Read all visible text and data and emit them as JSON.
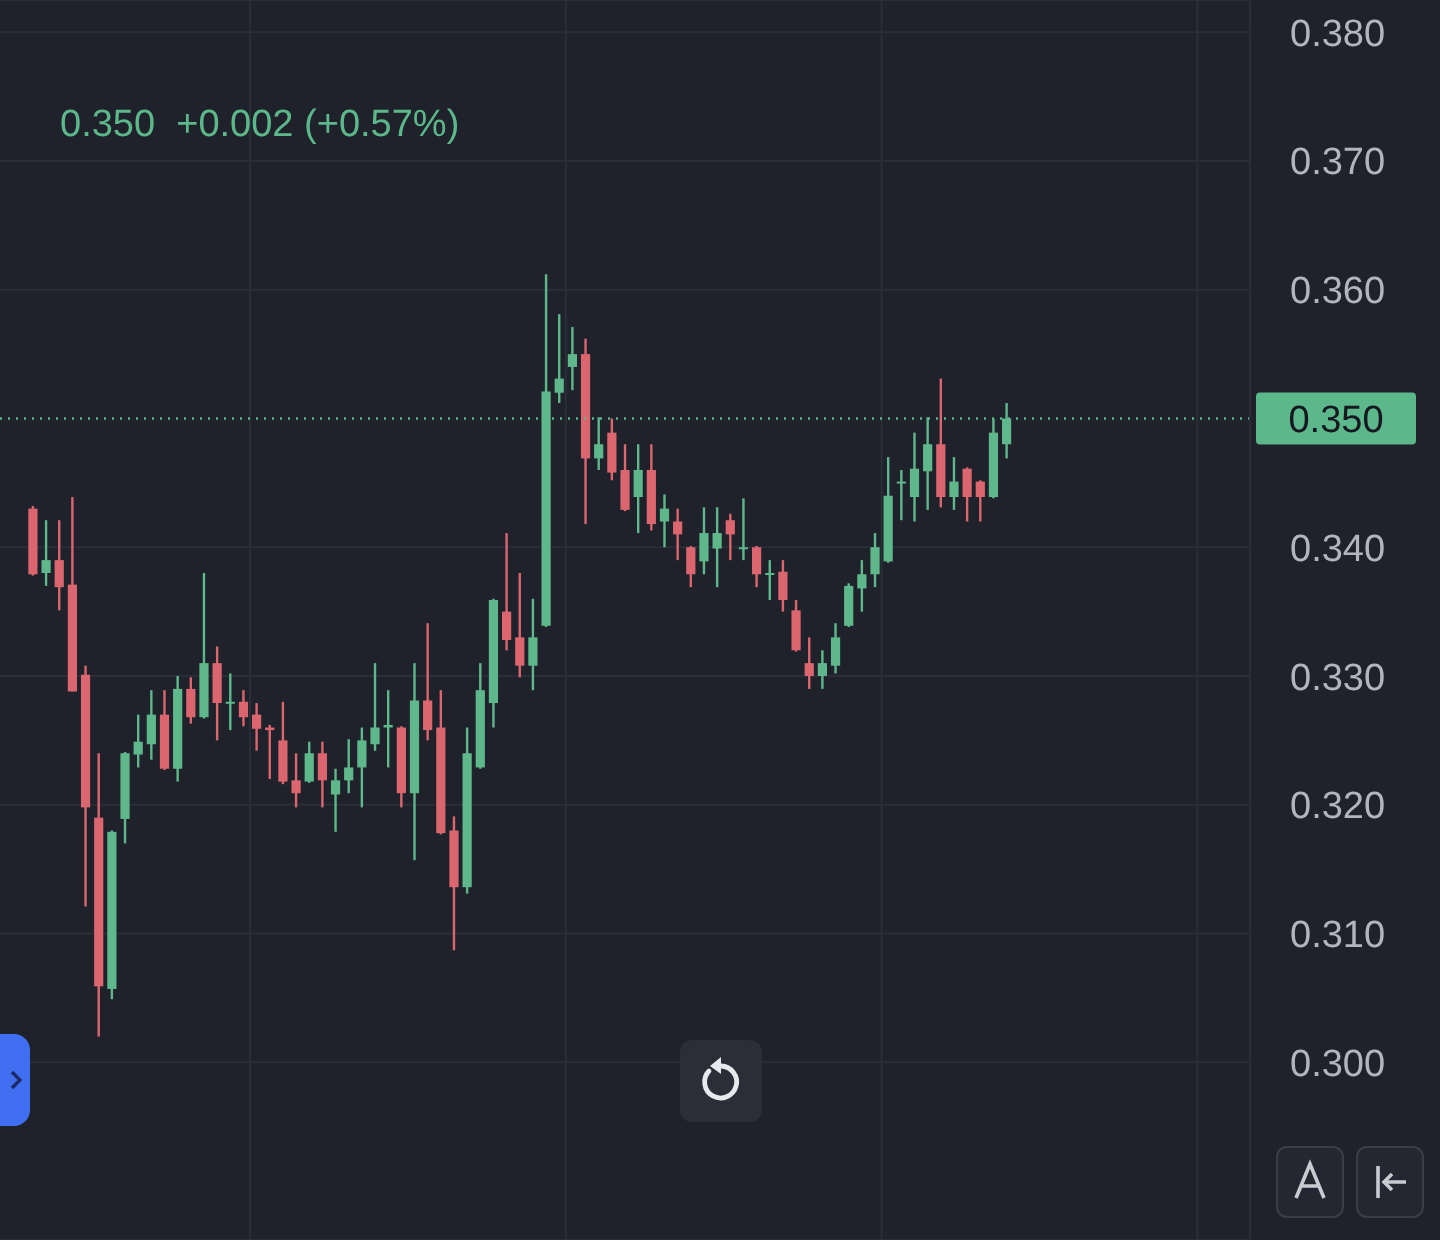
{
  "chart_data": {
    "type": "candlestick",
    "subtitle": "0.350  +0.002 (+0.57%)",
    "categories": [
      null,
      null,
      null,
      null,
      null,
      null,
      null,
      null,
      null,
      null,
      null,
      null,
      null,
      null,
      null,
      null,
      null,
      null,
      null,
      null,
      null,
      null,
      null,
      null,
      null,
      null,
      null,
      null,
      null,
      null,
      null,
      null,
      null,
      null,
      null,
      null,
      null,
      null,
      null,
      null,
      null,
      null,
      null,
      null,
      null,
      null,
      null,
      null,
      null,
      null,
      null,
      null,
      null,
      null,
      null,
      null,
      null,
      null,
      null,
      null,
      null,
      null,
      null,
      null,
      null,
      null,
      null,
      null,
      null,
      null,
      null,
      null,
      null,
      null,
      null,
      null,
      null,
      null,
      null,
      null,
      null,
      null,
      null,
      null,
      null,
      null,
      null,
      null,
      null,
      null,
      null,
      null,
      null,
      null,
      null
    ],
    "ohlc": [
      null,
      null,
      [
        0.343,
        0.3432,
        0.3378,
        0.3379
      ],
      [
        0.338,
        0.3421,
        0.337,
        0.339
      ],
      [
        0.339,
        0.3421,
        0.3351,
        0.3369
      ],
      [
        0.3371,
        0.3439,
        0.3288,
        0.3288
      ],
      [
        0.3301,
        0.3308,
        0.3121,
        0.3198
      ],
      [
        0.319,
        0.324,
        0.302,
        0.3059
      ],
      [
        0.3057,
        0.318,
        0.3049,
        0.3179
      ],
      [
        0.3189,
        0.3241,
        0.317,
        0.324
      ],
      [
        0.3239,
        0.327,
        0.3229,
        0.3249
      ],
      [
        0.3247,
        0.3289,
        0.3235,
        0.327
      ],
      [
        0.327,
        0.3289,
        0.3227,
        0.3228
      ],
      [
        0.3228,
        0.33,
        0.3218,
        0.329
      ],
      [
        0.329,
        0.3299,
        0.3263,
        0.3268
      ],
      [
        0.3268,
        0.338,
        0.3267,
        0.331
      ],
      [
        0.331,
        0.3323,
        0.325,
        0.3279
      ],
      [
        0.3279,
        0.3302,
        0.3258,
        0.328
      ],
      [
        0.328,
        0.3289,
        0.3261,
        0.3268
      ],
      [
        0.327,
        0.3279,
        0.3242,
        0.3259
      ],
      [
        0.326,
        0.3262,
        0.322,
        0.3258
      ],
      [
        0.325,
        0.328,
        0.3216,
        0.3218
      ],
      [
        0.3219,
        0.324,
        0.3198,
        0.3209
      ],
      [
        0.3218,
        0.3249,
        0.3217,
        0.324
      ],
      [
        0.324,
        0.3249,
        0.3198,
        0.3219
      ],
      [
        0.3208,
        0.3228,
        0.3179,
        0.3219
      ],
      [
        0.3219,
        0.3251,
        0.3209,
        0.3229
      ],
      [
        0.3229,
        0.326,
        0.3198,
        0.325
      ],
      [
        0.3247,
        0.331,
        0.3242,
        0.326
      ],
      [
        0.326,
        0.3289,
        0.3229,
        0.3262
      ],
      [
        0.326,
        0.3261,
        0.3198,
        0.3209
      ],
      [
        0.3209,
        0.331,
        0.3157,
        0.3281
      ],
      [
        0.3281,
        0.3341,
        0.325,
        0.3258
      ],
      [
        0.326,
        0.3289,
        0.3177,
        0.3178
      ],
      [
        0.318,
        0.3191,
        0.3087,
        0.3136
      ],
      [
        0.3136,
        0.326,
        0.3131,
        0.324
      ],
      [
        0.3229,
        0.331,
        0.3228,
        0.3289
      ],
      [
        0.3279,
        0.336,
        0.326,
        0.3359
      ],
      [
        0.335,
        0.3411,
        0.332,
        0.3328
      ],
      [
        0.333,
        0.338,
        0.3299,
        0.3308
      ],
      [
        0.3308,
        0.336,
        0.3289,
        0.333
      ],
      [
        0.3339,
        0.3612,
        0.3338,
        0.3521
      ],
      [
        0.352,
        0.3581,
        0.3512,
        0.3531
      ],
      [
        0.354,
        0.3571,
        0.3522,
        0.355
      ],
      [
        0.355,
        0.3562,
        0.3418,
        0.3469
      ],
      [
        0.3469,
        0.3501,
        0.346,
        0.348
      ],
      [
        0.3489,
        0.35,
        0.3452,
        0.3458
      ],
      [
        0.346,
        0.348,
        0.3428,
        0.3429
      ],
      [
        0.3439,
        0.348,
        0.3411,
        0.346
      ],
      [
        0.346,
        0.348,
        0.3413,
        0.3418
      ],
      [
        0.342,
        0.3441,
        0.34,
        0.343
      ],
      [
        0.342,
        0.343,
        0.339,
        0.341
      ],
      [
        0.34,
        0.3401,
        0.3369,
        0.3379
      ],
      [
        0.3389,
        0.3431,
        0.3379,
        0.3411
      ],
      [
        0.3399,
        0.3431,
        0.3369,
        0.3411
      ],
      [
        0.3421,
        0.3426,
        0.339,
        0.341
      ],
      [
        0.3399,
        0.3438,
        0.339,
        0.34
      ],
      [
        0.34,
        0.3401,
        0.3369,
        0.3379
      ],
      [
        0.3379,
        0.339,
        0.3359,
        0.338
      ],
      [
        0.3381,
        0.339,
        0.335,
        0.3359
      ],
      [
        0.3351,
        0.3359,
        0.3319,
        0.332
      ],
      [
        0.331,
        0.333,
        0.329,
        0.33
      ],
      [
        0.33,
        0.332,
        0.329,
        0.331
      ],
      [
        0.3308,
        0.3341,
        0.3302,
        0.333
      ],
      [
        0.3339,
        0.3372,
        0.3338,
        0.337
      ],
      [
        0.3368,
        0.339,
        0.335,
        0.3379
      ],
      [
        0.3379,
        0.3411,
        0.3369,
        0.34
      ],
      [
        0.3389,
        0.347,
        0.3388,
        0.344
      ],
      [
        0.345,
        0.346,
        0.3421,
        0.3451
      ],
      [
        0.3439,
        0.3489,
        0.342,
        0.3461
      ],
      [
        0.3459,
        0.3501,
        0.3429,
        0.348
      ],
      [
        0.348,
        0.3531,
        0.3431,
        0.3439
      ],
      [
        0.3439,
        0.347,
        0.3429,
        0.3451
      ],
      [
        0.3461,
        0.3462,
        0.342,
        0.3439
      ],
      [
        0.3451,
        0.3452,
        0.342,
        0.3439
      ],
      [
        0.3439,
        0.35,
        0.3438,
        0.3489
      ],
      [
        0.348,
        0.3512,
        0.3469,
        0.35
      ],
      null,
      null,
      null,
      null,
      null,
      null,
      null,
      null,
      null,
      null,
      null,
      null,
      null,
      null,
      null,
      null,
      null,
      null
    ],
    "colors": [
      null,
      null,
      "#dc6670",
      "#5fb88c",
      "#dc6670",
      "#dc6670",
      "#dc6670",
      "#dc6670",
      "#5fb88c",
      "#5fb88c",
      "#5fb88c",
      "#5fb88c",
      "#dc6670",
      "#5fb88c",
      "#dc6670",
      "#5fb88c",
      "#dc6670",
      "#5fb88c",
      "#dc6670",
      "#dc6670",
      "#dc6670",
      "#dc6670",
      "#dc6670",
      "#5fb88c",
      "#dc6670",
      "#5fb88c",
      "#5fb88c",
      "#5fb88c",
      "#5fb88c",
      "#5fb88c",
      "#dc6670",
      "#5fb88c",
      "#dc6670",
      "#dc6670",
      "#dc6670",
      "#5fb88c",
      "#5fb88c",
      "#5fb88c",
      "#dc6670",
      "#dc6670",
      "#5fb88c",
      "#5fb88c",
      "#5fb88c",
      "#5fb88c",
      "#dc6670",
      "#5fb88c",
      "#dc6670",
      "#dc6670",
      "#5fb88c",
      "#dc6670",
      "#5fb88c",
      "#dc6670",
      "#dc6670",
      "#5fb88c",
      "#5fb88c",
      "#dc6670",
      "#5fb88c",
      "#dc6670",
      "#5fb88c",
      "#dc6670",
      "#dc6670",
      "#dc6670",
      "#5fb88c",
      "#5fb88c",
      "#5fb88c",
      "#5fb88c",
      "#5fb88c",
      "#5fb88c",
      "#5fb88c",
      "#5fb88c",
      "#5fb88c",
      "#dc6670",
      "#5fb88c",
      "#dc6670",
      "#dc6670",
      "#5fb88c",
      "#5fb88c",
      null,
      null,
      null,
      null,
      null,
      null,
      null,
      null,
      null,
      null,
      null,
      null,
      null,
      null,
      null,
      null,
      null,
      null
    ],
    "ylim": [
      0.2862,
      0.3825
    ],
    "yticks": [
      {
        "value": 0.3,
        "label": "0.300"
      },
      {
        "value": 0.31,
        "label": "0.310"
      },
      {
        "value": 0.32,
        "label": "0.320"
      },
      {
        "value": 0.33,
        "label": "0.330"
      },
      {
        "value": 0.34,
        "label": "0.340"
      },
      {
        "value": 0.36,
        "label": "0.360"
      },
      {
        "value": 0.37,
        "label": "0.370"
      },
      {
        "value": 0.38,
        "label": "0.380"
      }
    ],
    "grid": true,
    "ref_lines": [
      {
        "axis": "y",
        "value": 0.35,
        "label": "0.350",
        "color": "#5cb88a",
        "line_style": "dotted"
      }
    ]
  }
}
